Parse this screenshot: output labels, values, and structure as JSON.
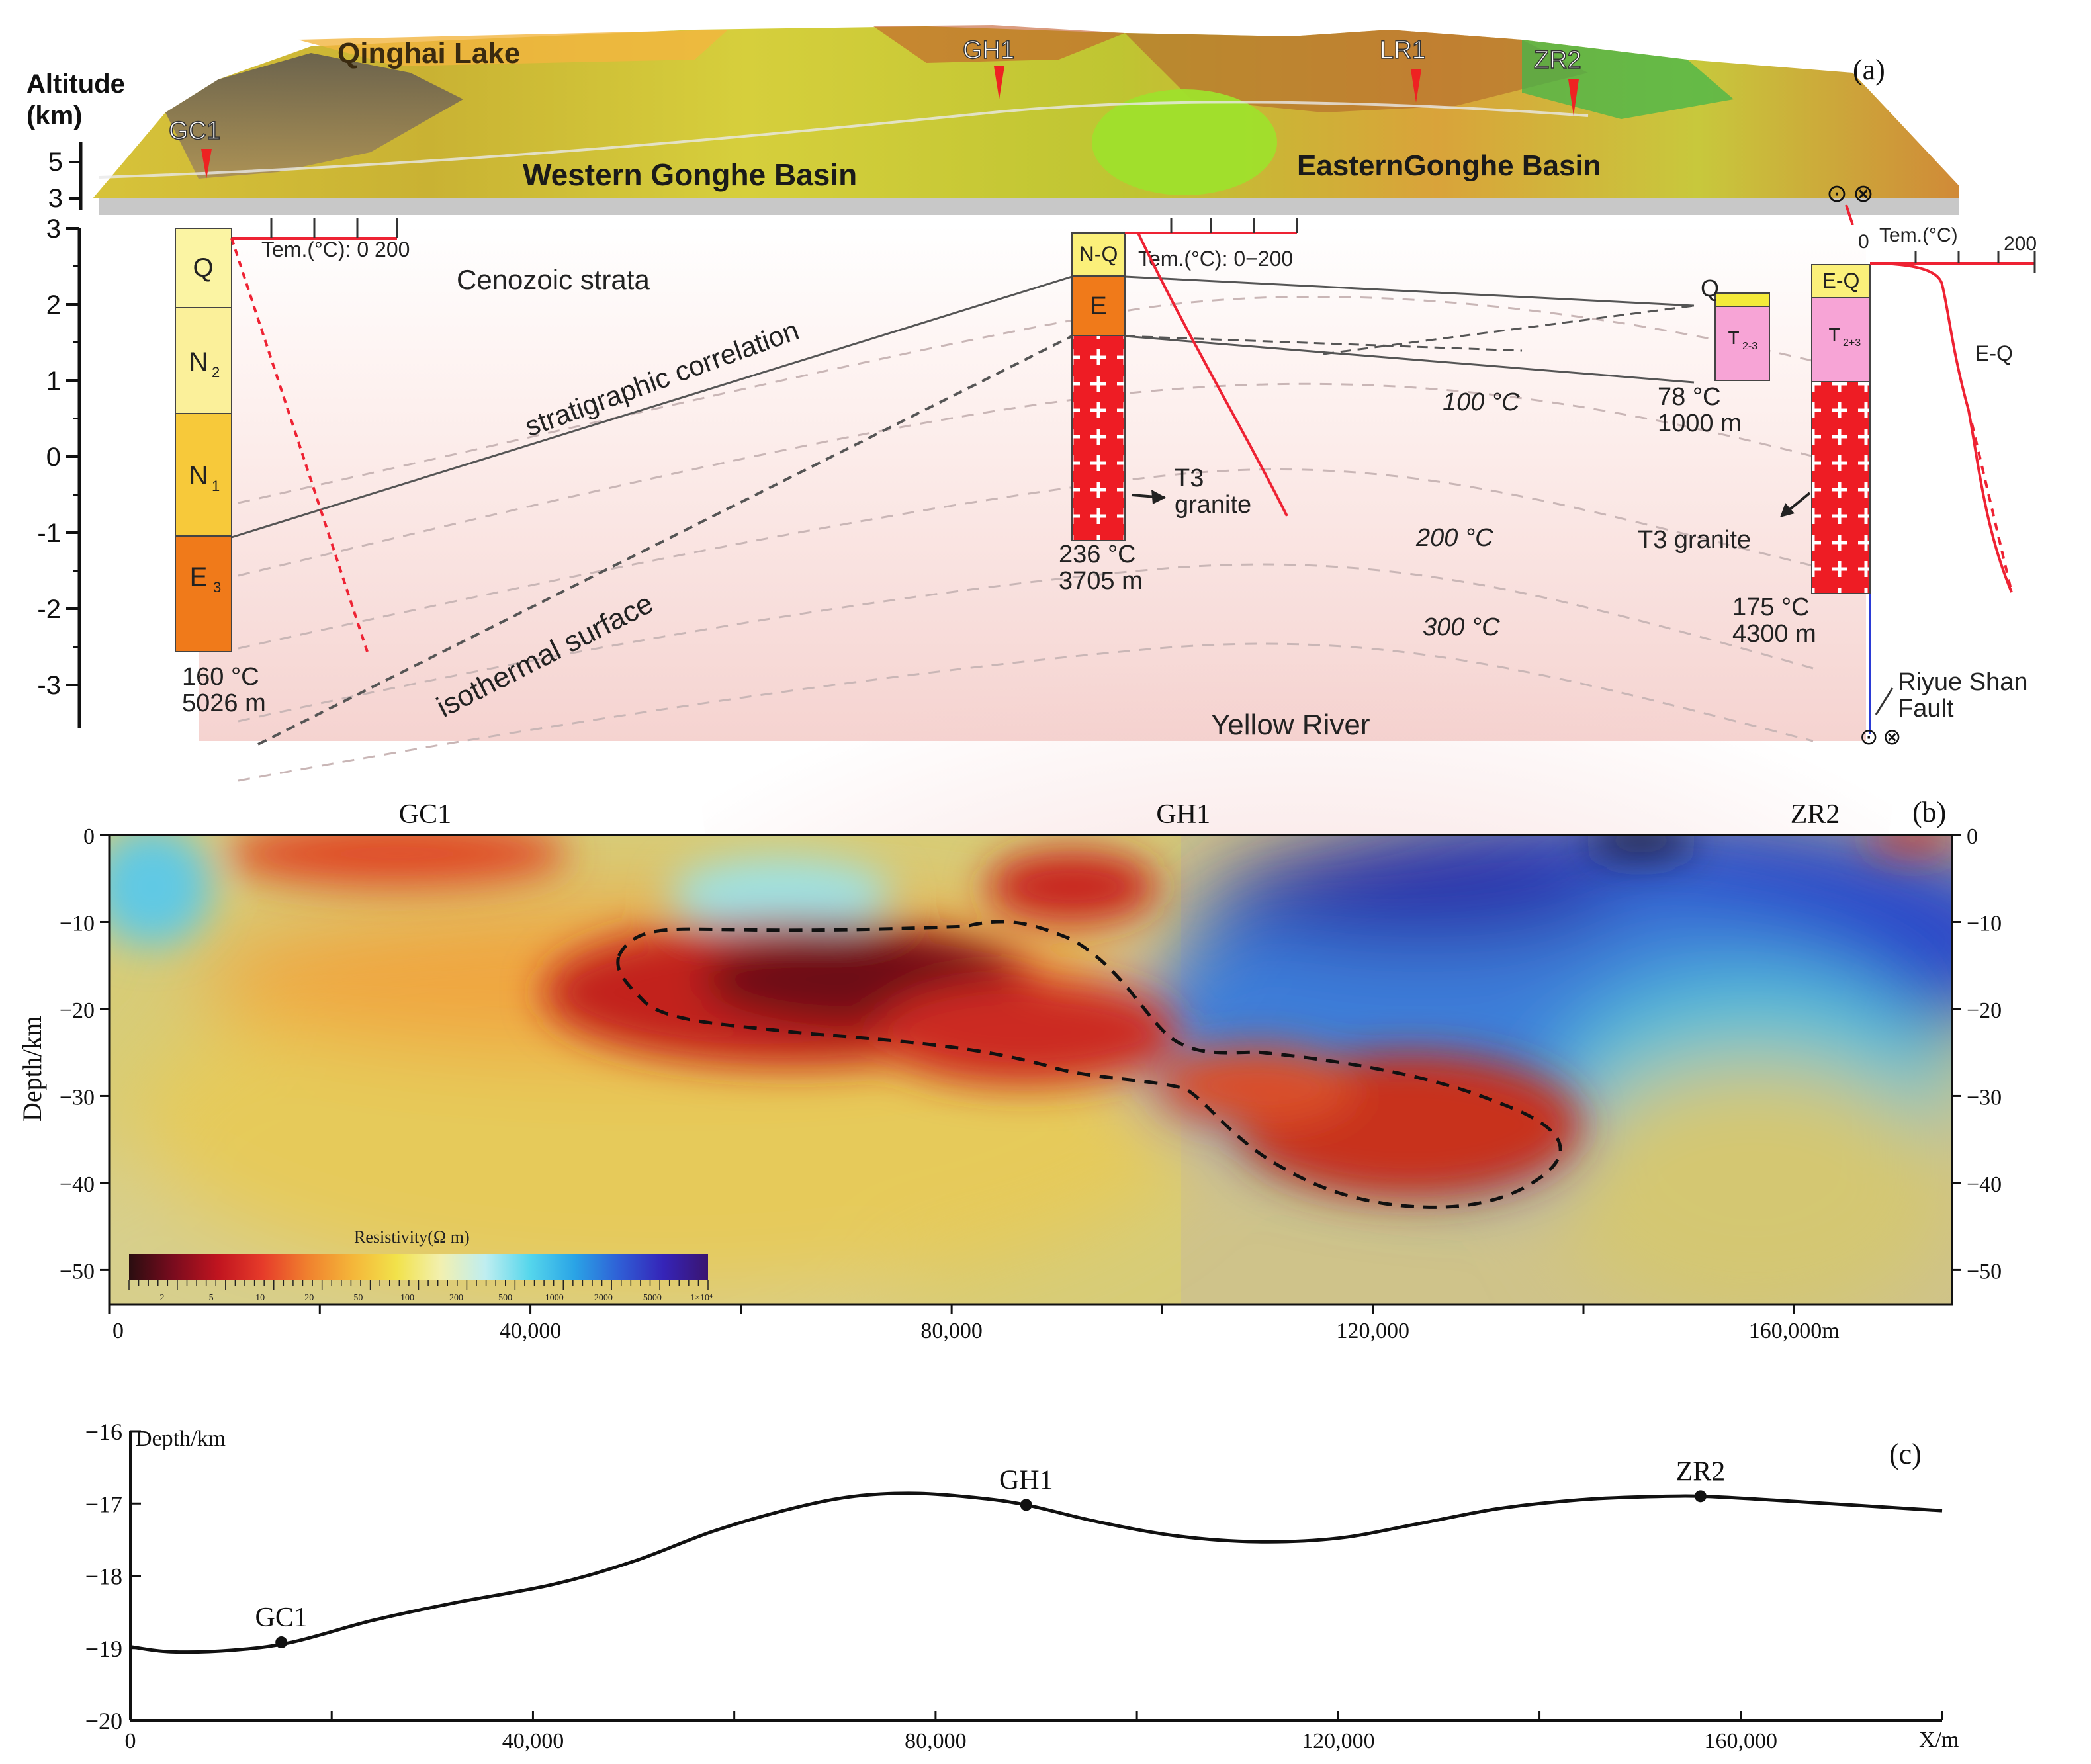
{
  "panel_a": {
    "panel_label": "(a)",
    "altitude_label_line1": "Altitude",
    "altitude_label_line2": "(km)",
    "terrain_labels": {
      "qinghai_lake": "Qinghai Lake",
      "western_basin": "Western Gonghe Basin",
      "eastern_basin": "EasternGonghe Basin"
    },
    "wells_top": [
      {
        "id": "GC1",
        "label": "GC1"
      },
      {
        "id": "GH1",
        "label": "GH1"
      },
      {
        "id": "LR1",
        "label": "LR1"
      },
      {
        "id": "ZR2",
        "label": "ZR2"
      }
    ],
    "terrain_altitude_ticks": [
      "5",
      "3"
    ],
    "section_altitude_ticks": [
      "3",
      "2",
      "1",
      "0",
      "-1",
      "-2",
      "-3"
    ],
    "temperature_axis_gc1": "Tem.(°C):  0   200",
    "temperature_axis_gh1": "Tem.(°C):  0−200",
    "temperature_axis_zr2": "Tem.(°C)",
    "temperature_axis_zr2_min": "0",
    "temperature_axis_zr2_max": "200",
    "cenozoic_strata": "Cenozoic strata",
    "stratigraphic_correlation": "stratigraphic correlation",
    "isothermal_surface": "isothermal surface",
    "isotherms": [
      "100 °C",
      "200 °C",
      "300 °C"
    ],
    "gc1_strata": [
      {
        "code": "Q",
        "sub": ""
      },
      {
        "code": "N",
        "sub": "2"
      },
      {
        "code": "N",
        "sub": "1"
      },
      {
        "code": "E",
        "sub": "3"
      }
    ],
    "gc1_bottom_temp": "160 °C",
    "gc1_bottom_depth": "5026  m",
    "gh1_strata": [
      "N-Q",
      "E"
    ],
    "gh1_granite": "T3",
    "gh1_granite_line2": "granite",
    "gh1_bottom_temp": "236 °C",
    "gh1_bottom_depth": "3705  m",
    "lr1_strata": [
      {
        "code": "Q",
        "sub": ""
      },
      {
        "code": "T",
        "sub": "2-3"
      }
    ],
    "lr1_bottom_temp": "78 °C",
    "lr1_bottom_depth": "1000  m",
    "zr2_strata": [
      {
        "code": "E-Q",
        "sub": ""
      },
      {
        "code": "T",
        "sub": "2+3"
      }
    ],
    "zr2_granite": "T3 granite",
    "zr2_bottom_temp": "175 °C",
    "zr2_bottom_depth": "4300  m",
    "zr2_curve_label": "E-Q",
    "fault_label_line1": "Riyue Shan",
    "fault_label_line2": "Fault",
    "yellow_river": "Yellow River",
    "strike_slip_symbol_left": "⊙",
    "strike_slip_symbol_right": "⊗"
  },
  "panel_b": {
    "panel_label": "(b)",
    "y_axis_label": "Depth/km",
    "y_ticks": [
      "0",
      "−10",
      "−20",
      "−30",
      "−40",
      "−50"
    ],
    "y_tick_values": [
      0,
      -10,
      -20,
      -30,
      -40,
      -50
    ],
    "x_ticks": [
      "0",
      "40,000",
      "80,000",
      "120,000",
      "160,000m"
    ],
    "x_tick_values": [
      0,
      40000,
      80000,
      120000,
      160000
    ],
    "x_range": [
      0,
      175000
    ],
    "y_range": [
      0,
      -54
    ],
    "wells": [
      {
        "label": "GC1",
        "x": 30000
      },
      {
        "label": "GH1",
        "x": 102000
      },
      {
        "label": "ZR2",
        "x": 162000
      }
    ],
    "colorbar_title": "Resistivity(Ω m)",
    "colorbar_ticks": [
      "2",
      "5",
      "10",
      "20",
      "50",
      "100",
      "200",
      "500",
      "1000",
      "2000",
      "5000",
      "1×10⁴"
    ],
    "colorbar_colors": [
      "#2a0d10",
      "#7a0c1e",
      "#c0141f",
      "#e63b2a",
      "#f0802e",
      "#f4b539",
      "#f2e24a",
      "#f2f0b0",
      "#bfeef0",
      "#55d6ec",
      "#2aa4e6",
      "#2f5fd6",
      "#3524b8",
      "#3a1470"
    ]
  },
  "panel_c": {
    "panel_label": "(c)",
    "y_axis_label": "Depth/km",
    "x_axis_label": "X/m",
    "y_ticks": [
      "−16",
      "−17",
      "−18",
      "−19",
      "−20"
    ],
    "y_tick_values": [
      -16,
      -17,
      -18,
      -19,
      -20
    ],
    "x_ticks": [
      "0",
      "40,000",
      "80,000",
      "120,000",
      "160,000"
    ],
    "x_tick_values": [
      0,
      40000,
      80000,
      120000,
      160000
    ],
    "x_range": [
      0,
      180000
    ],
    "y_range": [
      -20,
      -16
    ],
    "curve": {
      "x": [
        0,
        4000,
        10000,
        16000,
        24000,
        32000,
        42000,
        50000,
        58000,
        66000,
        72000,
        78000,
        84000,
        89000,
        96000,
        104000,
        112000,
        120000,
        128000,
        136000,
        144000,
        150000,
        156000,
        164000,
        172000,
        180000
      ],
      "y": [
        -18.98,
        -19.05,
        -19.03,
        -18.92,
        -18.62,
        -18.38,
        -18.12,
        -17.8,
        -17.38,
        -17.06,
        -16.9,
        -16.86,
        -16.92,
        -17.02,
        -17.25,
        -17.45,
        -17.53,
        -17.48,
        -17.28,
        -17.07,
        -16.95,
        -16.91,
        -16.9,
        -16.96,
        -17.03,
        -17.1
      ]
    },
    "wells": [
      {
        "label": "GC1",
        "x": 15000,
        "y": -18.92
      },
      {
        "label": "GH1",
        "x": 89000,
        "y": -17.02
      },
      {
        "label": "ZR2",
        "x": 156000,
        "y": -16.9
      }
    ]
  }
}
